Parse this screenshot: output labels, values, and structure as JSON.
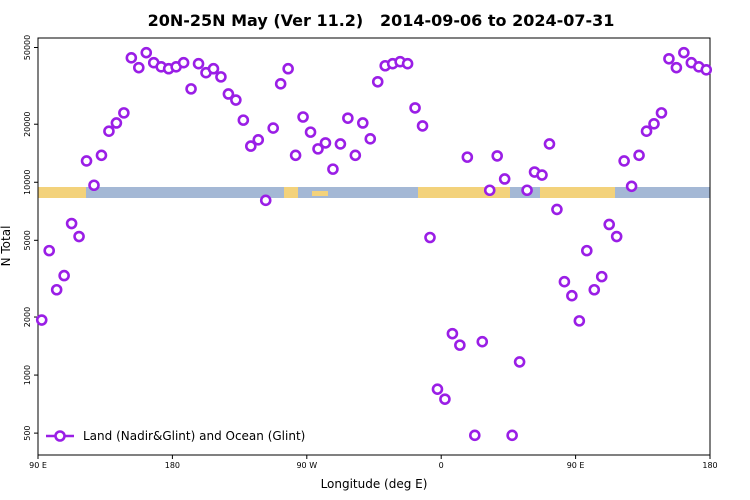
{
  "chart_data": {
    "type": "scatter",
    "title": "20N-25N May (Ver 11.2)   2014-09-06 to 2024-07-31",
    "x_label": "Longitude (deg E)",
    "y_label": "N Total",
    "log_y": true,
    "xlim": [
      90,
      540
    ],
    "ylim": [
      385,
      56000
    ],
    "xticks": [
      {
        "value": 90,
        "label": "90 E"
      },
      180,
      {
        "value": 270,
        "label": "90 W"
      },
      {
        "value": 360,
        "label": "0"
      },
      {
        "value": 450,
        "label": "90 E"
      },
      {
        "value": 540,
        "label": "180"
      }
    ],
    "yticks": [
      500,
      1000,
      2000,
      5000,
      10000,
      20000,
      50000
    ],
    "legend": "bottom-left",
    "x": [
      92.5,
      97.5,
      102.5,
      107.5,
      112.5,
      117.5,
      122.5,
      127.5,
      132.5,
      137.5,
      142.5,
      147.5,
      152.5,
      157.5,
      162.5,
      167.5,
      172.5,
      177.5,
      182.5,
      187.5,
      192.5,
      197.5,
      202.5,
      207.5,
      212.5,
      217.5,
      222.5,
      227.5,
      232.5,
      237.5,
      242.5,
      247.5,
      252.5,
      257.5,
      262.5,
      267.5,
      272.5,
      277.5,
      282.5,
      287.5,
      292.5,
      297.5,
      302.5,
      307.5,
      312.5,
      317.5,
      322.5,
      327.5,
      332.5,
      337.5,
      342.5,
      347.5,
      352.5,
      357.5,
      362.5,
      367.5,
      372.5,
      377.5,
      382.5,
      387.5,
      392.5,
      397.5,
      402.5,
      407.5,
      412.5,
      417.5,
      422.5,
      427.5,
      432.5,
      437.5,
      442.5,
      447.5,
      452.5,
      457.5,
      462.5,
      467.5,
      472.5,
      477.5,
      482.5,
      487.5,
      492.5,
      497.5,
      502.5,
      507.5,
      512.5,
      517.5,
      522.5,
      527.5,
      532.5,
      537.5
    ],
    "series": [
      {
        "name": "Land (Nadir&Glint) and Ocean (Glint)",
        "color": "#9a1ee6",
        "values": [
          1930,
          4420,
          2770,
          3280,
          6110,
          5230,
          12900,
          9650,
          13800,
          18400,
          20300,
          22900,
          44200,
          39300,
          47000,
          41700,
          39700,
          38800,
          39700,
          41700,
          30500,
          41200,
          37000,
          38800,
          35200,
          28700,
          26700,
          21000,
          15400,
          16600,
          8060,
          19100,
          32400,
          38800,
          13800,
          21800,
          18200,
          14900,
          16000,
          11700,
          15800,
          21500,
          13800,
          20300,
          16800,
          33200,
          40200,
          41200,
          42200,
          41200,
          24300,
          19600,
          5170,
          845,
          750,
          1640,
          1430,
          13500,
          487,
          1490,
          9090,
          13700,
          10400,
          487,
          1170,
          9090,
          11300,
          10900,
          15800,
          7230,
          3050,
          2580,
          1910,
          4420,
          2770,
          3240,
          6040,
          5230,
          12900,
          9530,
          13800,
          18400,
          20100,
          22900,
          43700,
          39300,
          47000,
          41700,
          39700,
          38300
        ]
      }
    ]
  }
}
